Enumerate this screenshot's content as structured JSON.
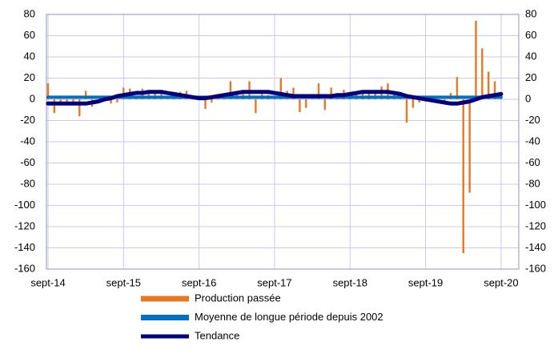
{
  "chart_data": {
    "type": "bar_line",
    "categories": [
      "sept-14",
      null,
      null,
      null,
      null,
      null,
      null,
      null,
      null,
      null,
      null,
      null,
      "sept-15",
      null,
      null,
      null,
      null,
      null,
      null,
      null,
      null,
      null,
      null,
      null,
      "sept-16",
      null,
      null,
      null,
      null,
      null,
      null,
      null,
      null,
      null,
      null,
      null,
      "sept-17",
      null,
      null,
      null,
      null,
      null,
      null,
      null,
      null,
      null,
      null,
      null,
      "sept-18",
      null,
      null,
      null,
      null,
      null,
      null,
      null,
      null,
      null,
      null,
      null,
      "sept-19",
      null,
      null,
      null,
      null,
      null,
      null,
      null,
      null,
      null,
      null,
      null,
      "sept-20"
    ],
    "series": [
      {
        "name": "Production passée",
        "color": "#e87722",
        "kind": "bar",
        "values": [
          15,
          -13,
          -5,
          -3,
          -3,
          -16,
          8,
          -7,
          -3,
          -2,
          -4,
          -3,
          11,
          10,
          3,
          10,
          8,
          7,
          5,
          3,
          5,
          7,
          8,
          2,
          1,
          -9,
          -3,
          3,
          5,
          17,
          8,
          5,
          17,
          -13,
          5,
          4,
          3,
          20,
          8,
          11,
          -12,
          -8,
          3,
          15,
          -10,
          11,
          4,
          9,
          6,
          5,
          7,
          6,
          8,
          12,
          15,
          8,
          3,
          -22,
          -8,
          -3,
          -2,
          -3,
          -2,
          -3,
          6,
          21,
          -145,
          -88,
          74,
          48,
          26,
          17,
          5
        ]
      },
      {
        "name": "Moyenne de longue période depuis 2002",
        "color": "#0070c0",
        "kind": "line",
        "values": [
          2,
          2,
          2,
          2,
          2,
          2,
          2,
          2,
          2,
          2,
          2,
          2,
          2,
          2,
          2,
          2,
          2,
          2,
          2,
          2,
          2,
          2,
          2,
          2,
          2,
          2,
          2,
          2,
          2,
          2,
          2,
          2,
          2,
          2,
          2,
          2,
          2,
          2,
          2,
          2,
          2,
          2,
          2,
          2,
          2,
          2,
          2,
          2,
          2,
          2,
          2,
          2,
          2,
          2,
          2,
          2,
          2,
          2,
          2,
          2,
          2,
          2,
          2,
          2,
          2,
          2,
          2,
          2,
          2,
          2,
          2,
          2,
          2
        ]
      },
      {
        "name": "Tendance",
        "color": "#00007f",
        "kind": "line",
        "values": [
          -4,
          -4,
          -4,
          -4,
          -4,
          -4,
          -4,
          -3,
          -2,
          0,
          1,
          3,
          4,
          5,
          6,
          6,
          7,
          7,
          7,
          6,
          5,
          4,
          3,
          2,
          1,
          1,
          2,
          3,
          4,
          5,
          6,
          7,
          7,
          7,
          7,
          7,
          6,
          5,
          4,
          3,
          3,
          3,
          3,
          3,
          3,
          3,
          4,
          4,
          5,
          6,
          7,
          7,
          7,
          7,
          7,
          6,
          5,
          3,
          2,
          1,
          0,
          -1,
          -2,
          -3,
          -4,
          -4,
          -3,
          -2,
          0,
          2,
          3,
          4,
          5
        ]
      }
    ],
    "ylim": [
      -160,
      80
    ],
    "yticks": [
      -160,
      -140,
      -120,
      -100,
      -80,
      -60,
      -40,
      -20,
      0,
      20,
      40,
      60,
      80
    ],
    "y2lim": [
      -160,
      80
    ],
    "y2ticks": [
      -160,
      -140,
      -120,
      -100,
      -80,
      -60,
      -40,
      -20,
      0,
      20,
      40,
      60,
      80
    ],
    "grid": true
  }
}
